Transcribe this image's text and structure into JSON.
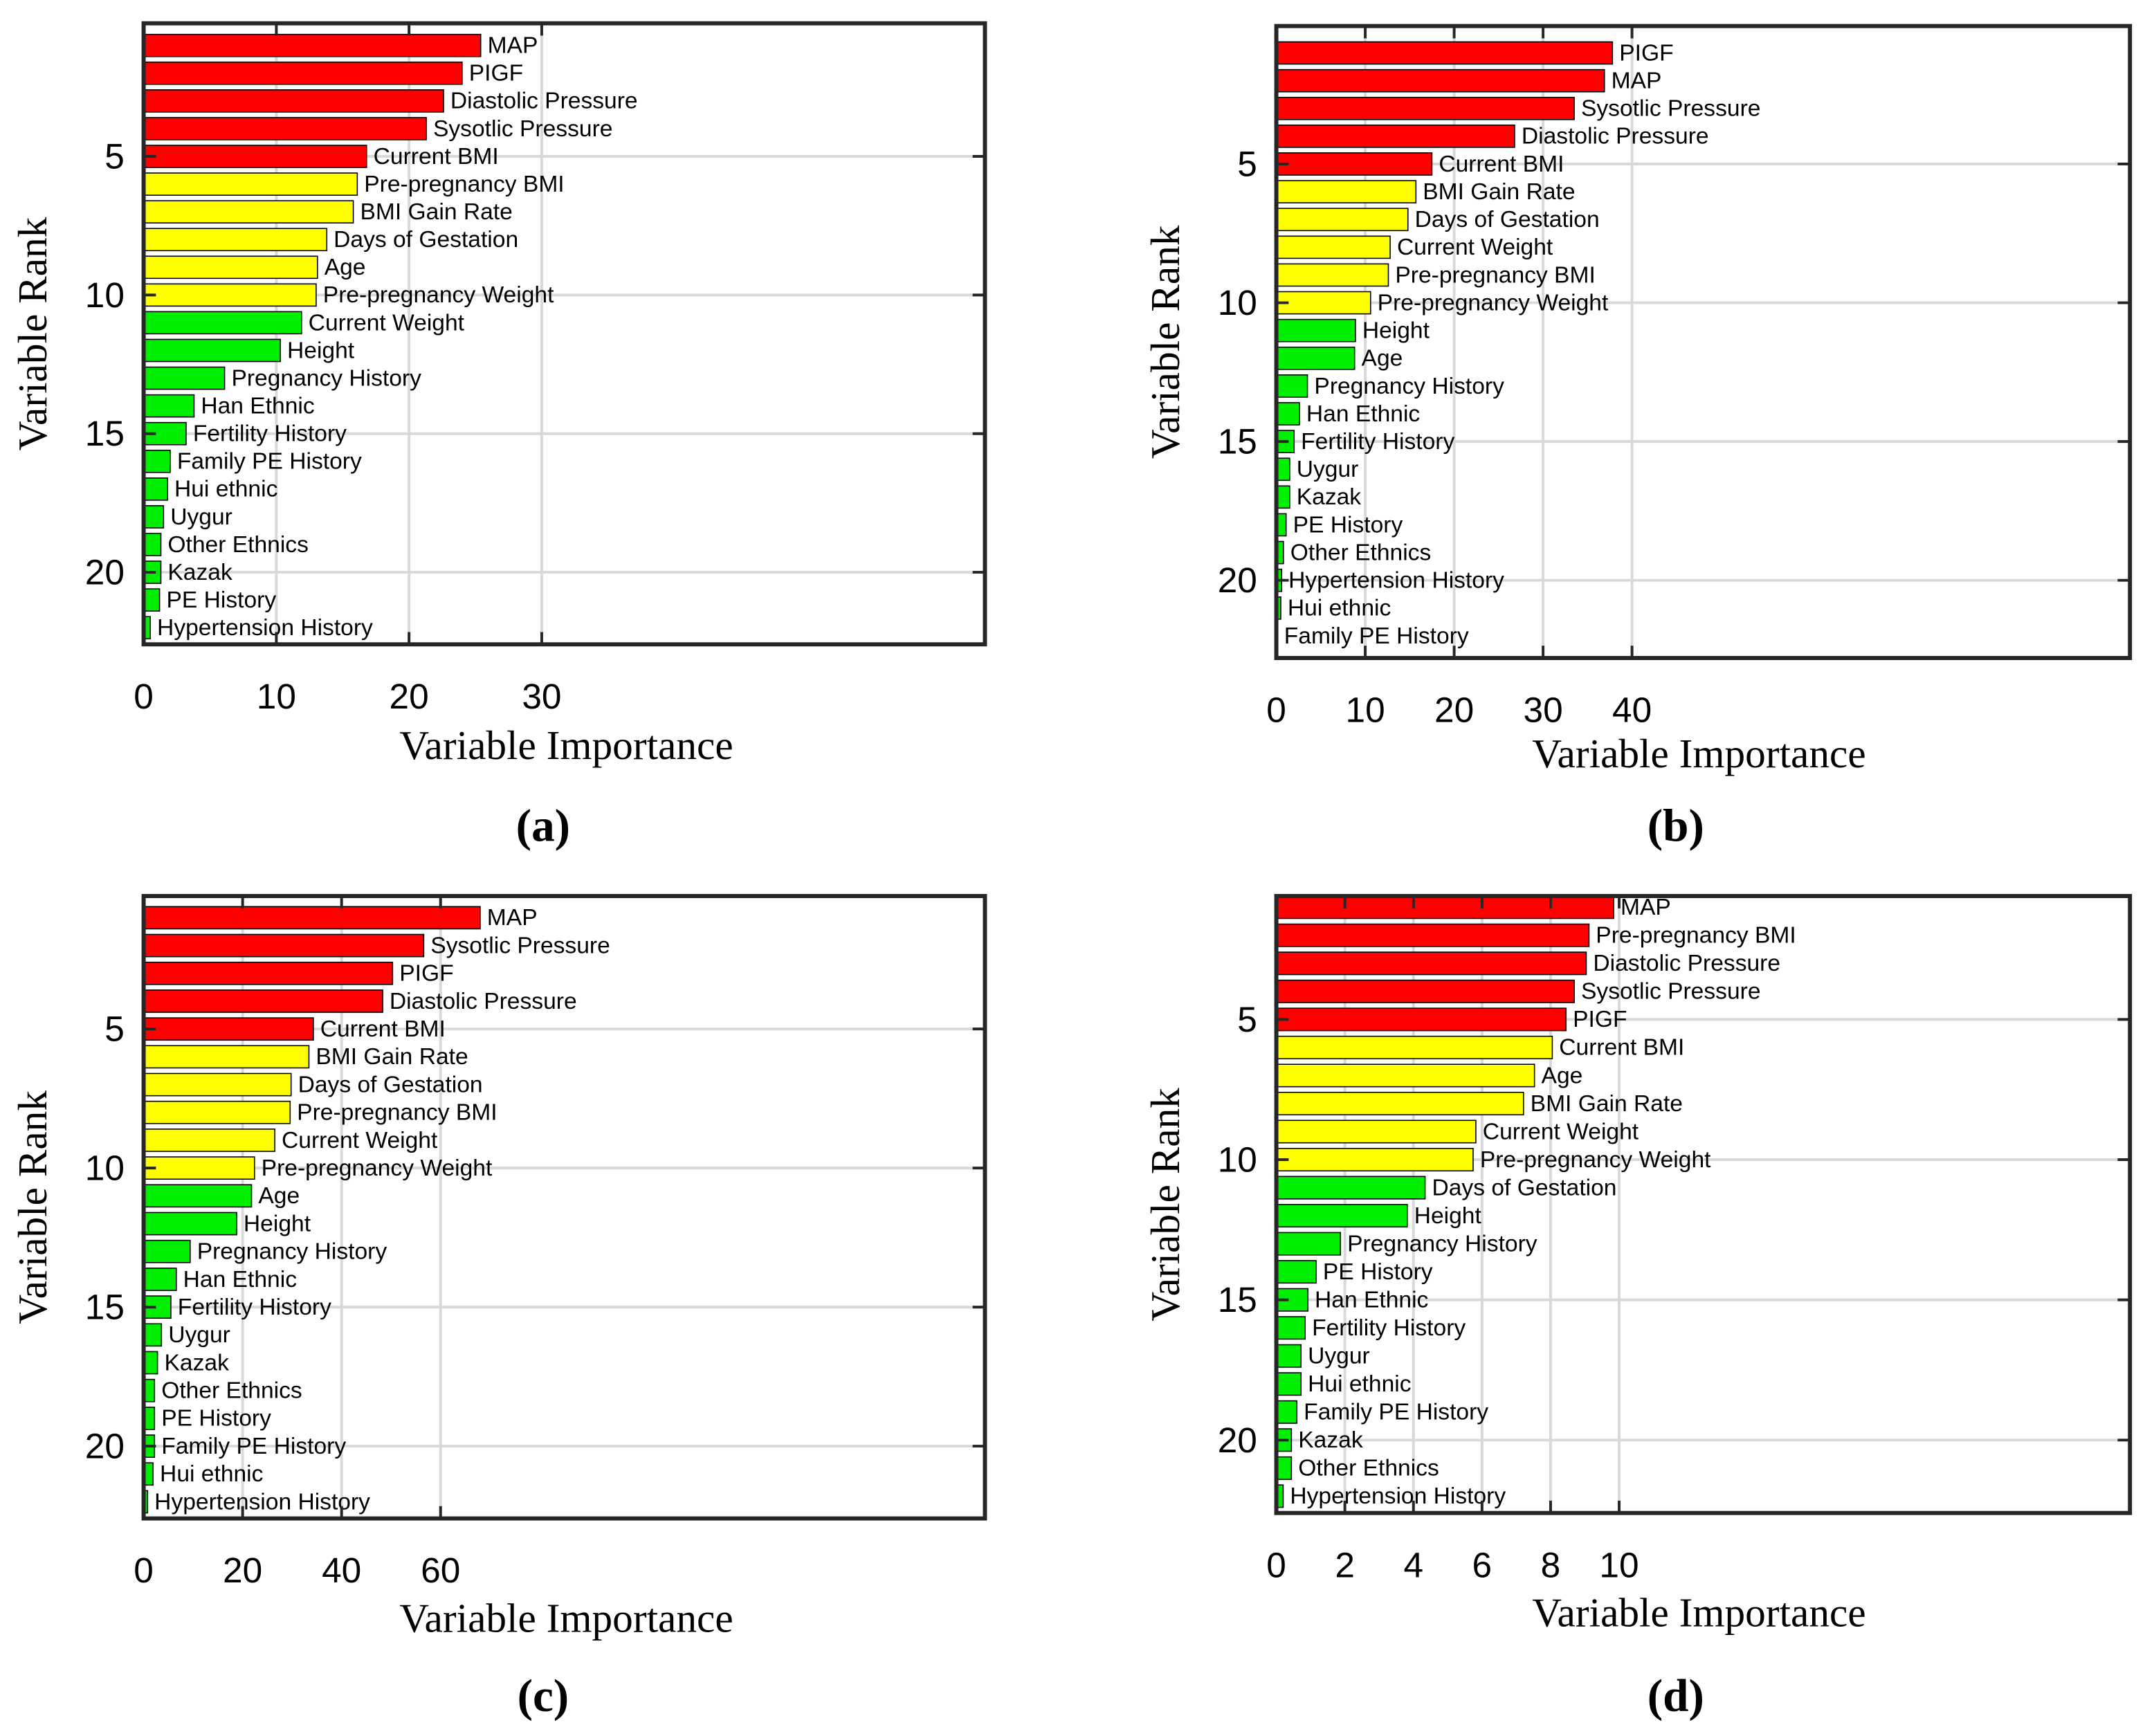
{
  "chart_data": [
    {
      "type": "bar",
      "orientation": "horizontal",
      "label": "(a)",
      "xlabel": "Variable Importance",
      "ylabel": "Variable Rank",
      "categories": [
        "MAP",
        "PIGF",
        "Diastolic Pressure",
        "Sysotlic Pressure",
        "Current BMI",
        "Pre-pregnancy BMI",
        "BMI Gain Rate",
        "Days of Gestation",
        "Age",
        "Pre-pregnancy Weight",
        "Current Weight",
        "Height",
        "Pregnancy History",
        "Han Ethnic",
        "Fertility History",
        "Family PE History",
        "Hui ethnic",
        "Uygur",
        "Other Ethnics",
        "Kazak",
        "PE History",
        "Hypertension History"
      ],
      "values": [
        25.4,
        24.0,
        22.6,
        21.3,
        16.8,
        16.1,
        15.8,
        13.8,
        13.1,
        13.0,
        11.9,
        10.3,
        6.1,
        3.8,
        3.2,
        2.0,
        1.8,
        1.5,
        1.3,
        1.3,
        1.2,
        0.5
      ],
      "colors": [
        "#ff0000",
        "#ff0000",
        "#ff0000",
        "#ff0000",
        "#ff0000",
        "#ffff00",
        "#ffff00",
        "#ffff00",
        "#ffff00",
        "#ffff00",
        "#00ee00",
        "#00ee00",
        "#00ee00",
        "#00ee00",
        "#00ee00",
        "#00ee00",
        "#00ee00",
        "#00ee00",
        "#00ee00",
        "#00ee00",
        "#00ee00",
        "#00ee00"
      ],
      "xlim": [
        0,
        63.4
      ],
      "xticks": [
        0,
        10,
        20,
        30
      ],
      "ylim": [
        0.2,
        22.6
      ],
      "yticks": [
        5,
        10,
        15,
        20
      ],
      "y_reversed": true,
      "grid": true
    },
    {
      "type": "bar",
      "orientation": "horizontal",
      "label": "(b)",
      "xlabel": "Variable Importance",
      "ylabel": "Variable Rank",
      "categories": [
        "PIGF",
        "MAP",
        "Sysotlic Pressure",
        "Diastolic Pressure",
        "Current BMI",
        "BMI Gain Rate",
        "Days of Gestation",
        "Current Weight",
        "Pre-pregnancy BMI",
        "Pre-pregnancy Weight",
        "Height",
        "Age",
        "Pregnancy History",
        "Han Ethnic",
        "Fertility History",
        "Uygur",
        "Kazak",
        "PE History",
        "Other Ethnics",
        "Hypertension History",
        "Hui ethnic",
        "Family PE History"
      ],
      "values": [
        37.8,
        36.9,
        33.5,
        26.8,
        17.5,
        15.7,
        14.8,
        12.8,
        12.6,
        10.6,
        8.9,
        8.8,
        3.5,
        2.6,
        2.0,
        1.5,
        1.5,
        1.1,
        0.8,
        0.6,
        0.5,
        0.1
      ],
      "colors": [
        "#ff0000",
        "#ff0000",
        "#ff0000",
        "#ff0000",
        "#ff0000",
        "#ffff00",
        "#ffff00",
        "#ffff00",
        "#ffff00",
        "#ffff00",
        "#00ee00",
        "#00ee00",
        "#00ee00",
        "#00ee00",
        "#00ee00",
        "#00ee00",
        "#00ee00",
        "#00ee00",
        "#00ee00",
        "#00ee00",
        "#00ee00",
        "#00ee00"
      ],
      "xlim": [
        0,
        96
      ],
      "xticks": [
        0,
        10,
        20,
        30,
        40
      ],
      "ylim": [
        0.03,
        22.8
      ],
      "yticks": [
        5,
        10,
        15,
        20
      ],
      "y_reversed": true,
      "grid": true
    },
    {
      "type": "bar",
      "orientation": "horizontal",
      "label": "(c)",
      "xlabel": "Variable Importance",
      "ylabel": "Variable Rank",
      "categories": [
        "MAP",
        "Sysotlic Pressure",
        "PIGF",
        "Diastolic Pressure",
        "Current BMI",
        "BMI Gain Rate",
        "Days of Gestation",
        "Pre-pregnancy BMI",
        "Current Weight",
        "Pre-pregnancy Weight",
        "Age",
        "Height",
        "Pregnancy History",
        "Han Ethnic",
        "Fertility History",
        "Uygur",
        "Kazak",
        "Other Ethnics",
        "PE History",
        "Family PE History",
        "Hui ethnic",
        "Hypertension History"
      ],
      "values": [
        68,
        56.6,
        50.3,
        48.3,
        34.3,
        33.4,
        29.8,
        29.6,
        26.5,
        22.4,
        21.8,
        18.8,
        9.4,
        6.6,
        5.5,
        3.6,
        2.8,
        2.2,
        2.2,
        2.2,
        1.9,
        0.8
      ],
      "colors": [
        "#ff0000",
        "#ff0000",
        "#ff0000",
        "#ff0000",
        "#ff0000",
        "#ffff00",
        "#ffff00",
        "#ffff00",
        "#ffff00",
        "#ffff00",
        "#00ee00",
        "#00ee00",
        "#00ee00",
        "#00ee00",
        "#00ee00",
        "#00ee00",
        "#00ee00",
        "#00ee00",
        "#00ee00",
        "#00ee00",
        "#00ee00",
        "#00ee00"
      ],
      "xlim": [
        0,
        170
      ],
      "xticks": [
        0,
        20,
        40,
        60
      ],
      "ylim": [
        0.22,
        22.6
      ],
      "yticks": [
        5,
        10,
        15,
        20
      ],
      "y_reversed": true,
      "grid": true
    },
    {
      "type": "bar",
      "orientation": "horizontal",
      "label": "(d)",
      "xlabel": "Variable Importance",
      "ylabel": "Variable Rank",
      "categories": [
        "MAP",
        "Pre-pregnancy BMI",
        "Diastolic Pressure",
        "Sysotlic Pressure",
        "PIGF",
        "Current BMI",
        "Age",
        "BMI Gain Rate",
        "Current Weight",
        "Pre-pregnancy Weight",
        "Days of Gestation",
        "Height",
        "Pregnancy History",
        "PE History",
        "Han Ethnic",
        "Fertility History",
        "Uygur",
        "Hui ethnic",
        "Family PE History",
        "Kazak",
        "Other Ethnics",
        "Hypertension History"
      ],
      "values": [
        9.84,
        9.12,
        9.04,
        8.69,
        8.45,
        8.05,
        7.53,
        7.21,
        5.82,
        5.74,
        4.34,
        3.82,
        1.87,
        1.16,
        0.92,
        0.84,
        0.72,
        0.72,
        0.6,
        0.44,
        0.44,
        0.2
      ],
      "colors": [
        "#ff0000",
        "#ff0000",
        "#ff0000",
        "#ff0000",
        "#ff0000",
        "#ffff00",
        "#ffff00",
        "#ffff00",
        "#ffff00",
        "#ffff00",
        "#00ee00",
        "#00ee00",
        "#00ee00",
        "#00ee00",
        "#00ee00",
        "#00ee00",
        "#00ee00",
        "#00ee00",
        "#00ee00",
        "#00ee00",
        "#00ee00",
        "#00ee00"
      ],
      "xlim": [
        0,
        24.9
      ],
      "xticks": [
        0,
        2,
        4,
        6,
        8,
        10
      ],
      "ylim": [
        0.6,
        22.6
      ],
      "yticks": [
        5,
        10,
        15,
        20
      ],
      "y_reversed": true,
      "grid": true
    }
  ]
}
